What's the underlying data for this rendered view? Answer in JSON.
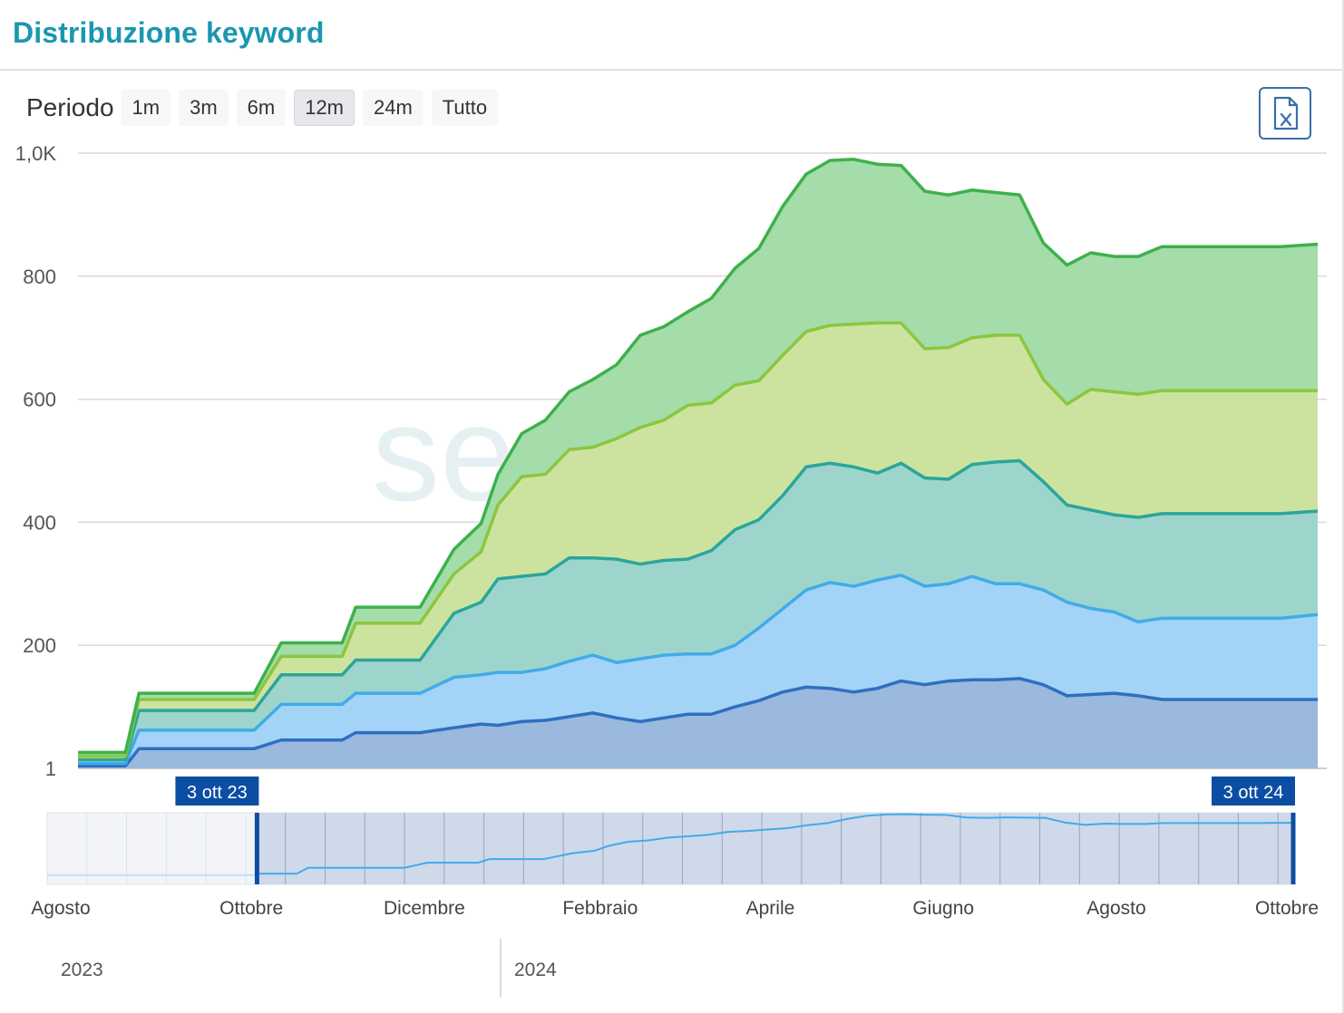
{
  "header": {
    "title": "Distribuzione keyword"
  },
  "toolbar": {
    "period_label": "Periodo",
    "buttons": [
      "1m",
      "3m",
      "6m",
      "12m",
      "24m",
      "Tutto"
    ],
    "active": "12m",
    "export_icon": "excel-file-icon"
  },
  "watermark": "seozoom",
  "colors": {
    "series": [
      "#2e6fc0",
      "#42abe6",
      "#2ba59a",
      "#8cc63f",
      "#3db14a"
    ],
    "fills": [
      "#9bb8de",
      "#a3d4f7",
      "#9dd5cd",
      "#cce3a0",
      "#a4dcaa"
    ],
    "navigator_line": "#42abe6",
    "navigator_selection": "#cfd9ea",
    "handle": "#0c4ea3"
  },
  "navigator": {
    "start_label": "3 ott 23",
    "end_label": "3 ott 24",
    "month_labels": [
      "Agosto",
      "Ottobre",
      "Dicembre",
      "Febbraio",
      "Aprile",
      "Giugno",
      "Agosto",
      "Ottobre"
    ],
    "year_labels": [
      "2023",
      "2024"
    ]
  },
  "chart_data": {
    "type": "area",
    "stacked": true,
    "y_tick_labels": [
      "1",
      "200",
      "400",
      "600",
      "800",
      "1,0K"
    ],
    "ylim": [
      0,
      1000
    ],
    "x": [
      "2023-10-03",
      "2023-10-17",
      "2023-10-21",
      "2023-11-10",
      "2023-11-24",
      "2023-12-02",
      "2023-12-12",
      "2023-12-20",
      "2023-12-24",
      "2024-01-01",
      "2024-01-12",
      "2024-01-22",
      "2024-01-30",
      "2024-02-04",
      "2024-02-11",
      "2024-02-18",
      "2024-02-25",
      "2024-03-03",
      "2024-03-10",
      "2024-03-17",
      "2024-03-24",
      "2024-03-31",
      "2024-04-07",
      "2024-04-14",
      "2024-04-21",
      "2024-04-28",
      "2024-05-05",
      "2024-05-12",
      "2024-05-19",
      "2024-05-26",
      "2024-06-02",
      "2024-06-09",
      "2024-06-16",
      "2024-06-23",
      "2024-06-30",
      "2024-07-07",
      "2024-07-14",
      "2024-07-21",
      "2024-07-28",
      "2024-08-04",
      "2024-08-11",
      "2024-08-18",
      "2024-08-25",
      "2024-09-01",
      "2024-09-08",
      "2024-09-15",
      "2024-09-22",
      "2024-10-03"
    ],
    "series": [
      {
        "values": [
          4,
          4,
          32,
          32,
          32,
          46,
          46,
          46,
          58,
          58,
          58,
          66,
          72,
          70,
          76,
          78,
          84,
          90,
          82,
          76,
          82,
          88,
          88,
          100,
          110,
          124,
          132,
          130,
          124,
          130,
          142,
          136,
          142,
          144,
          144,
          146,
          136,
          118,
          120,
          122,
          118,
          112,
          112,
          112,
          112,
          112,
          112,
          112
        ]
      },
      {
        "values": [
          4,
          4,
          30,
          30,
          30,
          58,
          58,
          58,
          64,
          64,
          64,
          82,
          80,
          86,
          80,
          84,
          90,
          94,
          90,
          102,
          102,
          98,
          98,
          100,
          118,
          135,
          158,
          172,
          172,
          176,
          172,
          160,
          158,
          168,
          156,
          154,
          154,
          152,
          140,
          132,
          120,
          132,
          132,
          132,
          132,
          132,
          132,
          138
        ]
      },
      {
        "values": [
          6,
          6,
          32,
          32,
          32,
          48,
          48,
          48,
          54,
          54,
          54,
          104,
          118,
          152,
          156,
          154,
          168,
          158,
          168,
          154,
          154,
          154,
          168,
          188,
          176,
          184,
          200,
          194,
          194,
          174,
          182,
          176,
          170,
          182,
          198,
          200,
          176,
          158,
          160,
          158,
          170,
          170,
          170,
          170,
          170,
          170,
          170,
          168
        ]
      },
      {
        "values": [
          6,
          6,
          18,
          18,
          18,
          30,
          30,
          30,
          60,
          60,
          60,
          64,
          82,
          120,
          162,
          162,
          176,
          180,
          196,
          222,
          228,
          250,
          240,
          235,
          226,
          228,
          220,
          224,
          232,
          244,
          228,
          210,
          214,
          206,
          206,
          204,
          166,
          164,
          196,
          200,
          200,
          200,
          200,
          200,
          200,
          200,
          200,
          196
        ]
      },
      {
        "values": [
          6,
          6,
          10,
          10,
          10,
          22,
          22,
          22,
          26,
          26,
          26,
          40,
          46,
          50,
          70,
          88,
          94,
          110,
          120,
          150,
          152,
          152,
          170,
          190,
          215,
          242,
          256,
          268,
          268,
          258,
          256,
          256,
          248,
          240,
          232,
          228,
          222,
          226,
          222,
          220,
          224,
          234,
          234,
          234,
          234,
          234,
          234,
          238
        ]
      }
    ]
  }
}
